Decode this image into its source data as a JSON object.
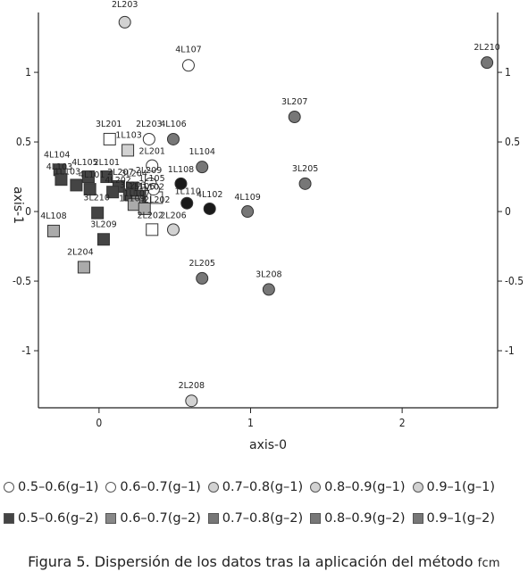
{
  "chart_data": {
    "type": "scatter",
    "title": "",
    "xlabel": "axis-0",
    "ylabel": "axis-1",
    "xlim": [
      -0.4,
      2.63
    ],
    "ylim": [
      -1.41,
      1.43
    ],
    "xticks": [
      0,
      1,
      2
    ],
    "yticks": [
      1,
      0.5,
      0,
      -0.5,
      -1
    ],
    "xtick_labels": [
      "0",
      "1",
      "2"
    ],
    "ytick_labels": [
      "1",
      "0.5",
      "0",
      "-0.5",
      "-1"
    ],
    "points": [
      {
        "label": "2L203",
        "x": 0.17,
        "y": 1.36,
        "shape": "circle",
        "color": "#d2d2d2"
      },
      {
        "label": "4L107",
        "x": 0.59,
        "y": 1.05,
        "shape": "circle",
        "color": "#ffffff"
      },
      {
        "label": "2L210",
        "x": 2.56,
        "y": 1.07,
        "shape": "circle",
        "color": "#777777"
      },
      {
        "label": "3L207",
        "x": 1.29,
        "y": 0.68,
        "shape": "circle",
        "color": "#777777"
      },
      {
        "label": "3L201",
        "x": 0.07,
        "y": 0.52,
        "shape": "square",
        "color": "#ffffff"
      },
      {
        "label": "1L103",
        "x": 0.19,
        "y": 0.44,
        "shape": "square",
        "color": "#d2d2d2"
      },
      {
        "label": "2L203",
        "x": 0.33,
        "y": 0.52,
        "shape": "circle",
        "color": "#ffffff"
      },
      {
        "label": "4L106",
        "x": 0.49,
        "y": 0.52,
        "shape": "circle",
        "color": "#777777"
      },
      {
        "label": "2L201",
        "x": 0.35,
        "y": 0.33,
        "shape": "circle",
        "color": "#ffffff"
      },
      {
        "label": "1L104",
        "x": 0.68,
        "y": 0.32,
        "shape": "circle",
        "color": "#777777"
      },
      {
        "label": "3L205",
        "x": 1.36,
        "y": 0.2,
        "shape": "circle",
        "color": "#777777"
      },
      {
        "label": "2L209",
        "x": 0.34,
        "y": 0.2,
        "shape": "circle",
        "color": "#ffffff"
      },
      {
        "label": "1L108",
        "x": 0.54,
        "y": 0.2,
        "shape": "circle",
        "color": "#1a1a1a"
      },
      {
        "label": "1L102",
        "x": 0.38,
        "y": 0.1,
        "shape": "square",
        "color": "#ffffff"
      },
      {
        "label": "1L105",
        "x": 0.36,
        "y": 0.16,
        "shape": "circle",
        "color": "#ffffff"
      },
      {
        "label": "1L110",
        "x": 0.58,
        "y": 0.06,
        "shape": "circle",
        "color": "#1a1a1a"
      },
      {
        "label": "4L102",
        "x": 0.73,
        "y": 0.02,
        "shape": "circle",
        "color": "#1a1a1a"
      },
      {
        "label": "4L109",
        "x": 0.98,
        "y": 0.0,
        "shape": "circle",
        "color": "#777777"
      },
      {
        "label": "4L104",
        "x": -0.26,
        "y": 0.3,
        "shape": "square",
        "color": "#444444"
      },
      {
        "label": "4L103",
        "x": -0.25,
        "y": 0.23,
        "shape": "square",
        "color": "#444444"
      },
      {
        "label": "1L103",
        "x": -0.15,
        "y": 0.19,
        "shape": "square",
        "color": "#444444"
      },
      {
        "label": "4L105",
        "x": -0.07,
        "y": 0.25,
        "shape": "square",
        "color": "#444444"
      },
      {
        "label": "2L101",
        "x": 0.05,
        "y": 0.25,
        "shape": "square",
        "color": "#444444"
      },
      {
        "label": "4L101",
        "x": -0.06,
        "y": 0.16,
        "shape": "square",
        "color": "#444444"
      },
      {
        "label": "2L207",
        "x": 0.13,
        "y": 0.18,
        "shape": "square",
        "color": "#444444"
      },
      {
        "label": "3L204",
        "x": 0.22,
        "y": 0.17,
        "shape": "square",
        "color": "#444444"
      },
      {
        "label": "4L202",
        "x": 0.09,
        "y": 0.14,
        "shape": "square",
        "color": "#444444"
      },
      {
        "label": "3L203",
        "x": 0.2,
        "y": 0.12,
        "shape": "square",
        "color": "#444444"
      },
      {
        "label": "1L106",
        "x": 0.27,
        "y": 0.11,
        "shape": "square",
        "color": "#444444"
      },
      {
        "label": "1L107",
        "x": 0.25,
        "y": 0.07,
        "shape": "square",
        "color": "#888888"
      },
      {
        "label": "1L109",
        "x": 0.23,
        "y": 0.05,
        "shape": "square",
        "color": "#aaaaaa"
      },
      {
        "label": "2L202",
        "x": 0.3,
        "y": 0.02,
        "shape": "square",
        "color": "#aaaaaa"
      },
      {
        "label": "3L210",
        "x": -0.01,
        "y": -0.01,
        "shape": "square",
        "color": "#444444"
      },
      {
        "label": "2L202",
        "x": 0.35,
        "y": -0.13,
        "shape": "square",
        "color": "#ffffff"
      },
      {
        "label": "2L206",
        "x": 0.49,
        "y": -0.13,
        "shape": "circle",
        "color": "#d2d2d2"
      },
      {
        "label": "4L108",
        "x": -0.3,
        "y": -0.14,
        "shape": "square",
        "color": "#aaaaaa"
      },
      {
        "label": "3L209",
        "x": 0.03,
        "y": -0.2,
        "shape": "square",
        "color": "#444444"
      },
      {
        "label": "2L204",
        "x": -0.1,
        "y": -0.4,
        "shape": "square",
        "color": "#aaaaaa"
      },
      {
        "label": "2L205",
        "x": 0.68,
        "y": -0.48,
        "shape": "circle",
        "color": "#777777"
      },
      {
        "label": "3L208",
        "x": 1.12,
        "y": -0.56,
        "shape": "circle",
        "color": "#777777"
      },
      {
        "label": "2L208",
        "x": 0.61,
        "y": -1.36,
        "shape": "circle",
        "color": "#d2d2d2"
      }
    ],
    "point_labels": [
      {
        "text": "2L203",
        "x": 0.17,
        "y": 1.36,
        "dx": 0,
        "dy": -17,
        "anchor": "middle"
      },
      {
        "text": "4L107",
        "x": 0.59,
        "y": 1.05,
        "dx": 0,
        "dy": -15,
        "anchor": "middle"
      },
      {
        "text": "2L210",
        "x": 2.56,
        "y": 1.07,
        "dx": 0,
        "dy": -14,
        "anchor": "middle"
      },
      {
        "text": "3L207",
        "x": 1.29,
        "y": 0.68,
        "dx": 0,
        "dy": -14,
        "anchor": "middle"
      },
      {
        "text": "3L201",
        "x": 0.07,
        "y": 0.52,
        "dx": -1,
        "dy": -14,
        "anchor": "middle"
      },
      {
        "text": "1L103",
        "x": 0.19,
        "y": 0.44,
        "dx": 1,
        "dy": -14,
        "anchor": "middle"
      },
      {
        "text": "2L203",
        "x": 0.33,
        "y": 0.52,
        "dx": 0,
        "dy": -14,
        "anchor": "middle"
      },
      {
        "text": "4L106",
        "x": 0.49,
        "y": 0.52,
        "dx": 0,
        "dy": -14,
        "anchor": "middle"
      },
      {
        "text": "2L201",
        "x": 0.35,
        "y": 0.33,
        "dx": 0,
        "dy": -13,
        "anchor": "middle"
      },
      {
        "text": "1L104",
        "x": 0.68,
        "y": 0.32,
        "dx": 0,
        "dy": -14,
        "anchor": "middle"
      },
      {
        "text": "3L205",
        "x": 1.36,
        "y": 0.2,
        "dx": 0,
        "dy": -14,
        "anchor": "middle"
      },
      {
        "text": "2L209",
        "x": 0.34,
        "y": 0.2,
        "dx": -2,
        "dy": -12,
        "anchor": "middle"
      },
      {
        "text": "1L108",
        "x": 0.54,
        "y": 0.2,
        "dx": 0,
        "dy": -13,
        "anchor": "middle"
      },
      {
        "text": "1L102",
        "x": 0.38,
        "y": 0.1,
        "dx": -6,
        "dy": -9,
        "anchor": "middle"
      },
      {
        "text": "1L105",
        "x": 0.36,
        "y": 0.16,
        "dx": -2,
        "dy": -9,
        "anchor": "middle"
      },
      {
        "text": "1L110",
        "x": 0.58,
        "y": 0.06,
        "dx": 1,
        "dy": -10,
        "anchor": "middle"
      },
      {
        "text": "4L102",
        "x": 0.73,
        "y": 0.02,
        "dx": 0,
        "dy": -13,
        "anchor": "middle"
      },
      {
        "text": "4L109",
        "x": 0.98,
        "y": 0.0,
        "dx": 0,
        "dy": -13,
        "anchor": "middle"
      },
      {
        "text": "4L104",
        "x": -0.26,
        "y": 0.3,
        "dx": -3,
        "dy": -14,
        "anchor": "middle"
      },
      {
        "text": "4L103",
        "x": -0.25,
        "y": 0.23,
        "dx": -2,
        "dy": -11,
        "anchor": "middle"
      },
      {
        "text": "1L103",
        "x": -0.15,
        "y": 0.19,
        "dx": -10,
        "dy": -12,
        "anchor": "middle"
      },
      {
        "text": "4L105",
        "x": -0.07,
        "y": 0.25,
        "dx": -4,
        "dy": -13,
        "anchor": "middle"
      },
      {
        "text": "2L101",
        "x": 0.05,
        "y": 0.25,
        "dx": 0,
        "dy": -13,
        "anchor": "middle"
      },
      {
        "text": "4L101",
        "x": -0.06,
        "y": 0.16,
        "dx": 2,
        "dy": -13,
        "anchor": "middle"
      },
      {
        "text": "2L207",
        "x": 0.13,
        "y": 0.18,
        "dx": 2,
        "dy": -13,
        "anchor": "middle"
      },
      {
        "text": "3L204",
        "x": 0.22,
        "y": 0.17,
        "dx": 2,
        "dy": -13,
        "anchor": "middle"
      },
      {
        "text": "4L202",
        "x": 0.09,
        "y": 0.14,
        "dx": 6,
        "dy": -10,
        "anchor": "middle"
      },
      {
        "text": "3L203",
        "x": 0.2,
        "y": 0.12,
        "dx": 4,
        "dy": -8,
        "anchor": "middle"
      },
      {
        "text": "1L106",
        "x": 0.27,
        "y": 0.11,
        "dx": 2,
        "dy": -8,
        "anchor": "middle"
      },
      {
        "text": "1L107",
        "x": 0.25,
        "y": 0.07,
        "dx": 0,
        "dy": -6,
        "anchor": "middle"
      },
      {
        "text": "1L109",
        "x": 0.23,
        "y": 0.05,
        "dx": -2,
        "dy": -4,
        "anchor": "middle"
      },
      {
        "text": "2L202",
        "x": 0.3,
        "y": 0.02,
        "dx": 14,
        "dy": -7,
        "anchor": "middle"
      },
      {
        "text": "3L210",
        "x": -0.01,
        "y": -0.01,
        "dx": -1,
        "dy": -14,
        "anchor": "middle"
      },
      {
        "text": "2L202",
        "x": 0.35,
        "y": -0.13,
        "dx": -2,
        "dy": -13,
        "anchor": "middle"
      },
      {
        "text": "2L206",
        "x": 0.49,
        "y": -0.13,
        "dx": 0,
        "dy": -13,
        "anchor": "middle"
      },
      {
        "text": "4L108",
        "x": -0.3,
        "y": -0.14,
        "dx": 0,
        "dy": -14,
        "anchor": "middle"
      },
      {
        "text": "3L209",
        "x": 0.03,
        "y": -0.2,
        "dx": 0,
        "dy": -14,
        "anchor": "middle"
      },
      {
        "text": "2L204",
        "x": -0.1,
        "y": -0.4,
        "dx": -4,
        "dy": -14,
        "anchor": "middle"
      },
      {
        "text": "2L205",
        "x": 0.68,
        "y": -0.48,
        "dx": 0,
        "dy": -14,
        "anchor": "middle"
      },
      {
        "text": "3L208",
        "x": 1.12,
        "y": -0.56,
        "dx": 0,
        "dy": -14,
        "anchor": "middle"
      },
      {
        "text": "2L208",
        "x": 0.61,
        "y": -1.36,
        "dx": 0,
        "dy": -14,
        "anchor": "middle"
      }
    ],
    "legend": [
      [
        {
          "shape": "circle",
          "color": "#ffffff",
          "label": "0.5–0.6(g–1)"
        },
        {
          "shape": "circle",
          "color": "#ffffff",
          "label": "0.6–0.7(g–1)"
        },
        {
          "shape": "circle",
          "color": "#d2d2d2",
          "label": "0.7–0.8(g–1)"
        },
        {
          "shape": "circle",
          "color": "#d2d2d2",
          "label": "0.8–0.9(g–1)"
        },
        {
          "shape": "circle",
          "color": "#d2d2d2",
          "label": "0.9–1(g–1)"
        }
      ],
      [
        {
          "shape": "square",
          "color": "#444444",
          "label": "0.5–0.6(g–2)"
        },
        {
          "shape": "square",
          "color": "#888888",
          "label": "0.6–0.7(g–2)"
        },
        {
          "shape": "square",
          "color": "#777777",
          "label": "0.7–0.8(g–2)"
        },
        {
          "shape": "square",
          "color": "#777777",
          "label": "0.8–0.9(g–2)"
        },
        {
          "shape": "square",
          "color": "#777777",
          "label": "0.9–1(g–2)"
        }
      ]
    ],
    "legend_placement": "bottom"
  },
  "caption": {
    "prefix": "Figura 5.",
    "text": "Dispersión de los datos tras la aplicación del método",
    "method": "fcm"
  }
}
